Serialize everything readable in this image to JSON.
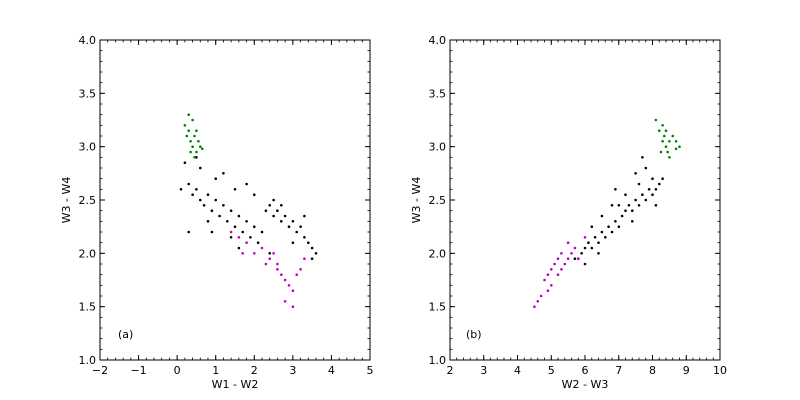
{
  "chart_data": [
    {
      "type": "scatter",
      "panel_label": "(a)",
      "xlabel": "W1 - W2",
      "ylabel": "W3 - W4",
      "xlim": [
        -2,
        5
      ],
      "ylim": [
        1.0,
        4.0
      ],
      "xticks": [
        "−2",
        "−1",
        "0",
        "1",
        "2",
        "3",
        "4",
        "5"
      ],
      "yticks": [
        "1.0",
        "1.5",
        "2.0",
        "2.5",
        "3.0",
        "3.5",
        "4.0"
      ],
      "grid": false,
      "series": [
        {
          "color": "#000000",
          "points": [
            [
              0.1,
              2.6
            ],
            [
              0.3,
              2.65
            ],
            [
              0.4,
              2.55
            ],
            [
              0.5,
              2.6
            ],
            [
              0.6,
              2.5
            ],
            [
              0.7,
              2.45
            ],
            [
              0.8,
              2.55
            ],
            [
              0.9,
              2.4
            ],
            [
              1.0,
              2.5
            ],
            [
              1.1,
              2.35
            ],
            [
              1.2,
              2.45
            ],
            [
              1.3,
              2.3
            ],
            [
              1.4,
              2.4
            ],
            [
              1.5,
              2.25
            ],
            [
              1.6,
              2.35
            ],
            [
              1.7,
              2.2
            ],
            [
              1.8,
              2.3
            ],
            [
              1.9,
              2.15
            ],
            [
              2.0,
              2.25
            ],
            [
              2.1,
              2.1
            ],
            [
              2.2,
              2.2
            ],
            [
              2.3,
              2.4
            ],
            [
              2.4,
              2.45
            ],
            [
              2.5,
              2.35
            ],
            [
              2.6,
              2.4
            ],
            [
              2.7,
              2.3
            ],
            [
              2.8,
              2.35
            ],
            [
              2.9,
              2.25
            ],
            [
              3.0,
              2.3
            ],
            [
              3.1,
              2.2
            ],
            [
              3.2,
              2.25
            ],
            [
              3.3,
              2.15
            ],
            [
              3.4,
              2.1
            ],
            [
              3.5,
              2.05
            ],
            [
              3.6,
              2.0
            ],
            [
              1.0,
              2.7
            ],
            [
              1.5,
              2.6
            ],
            [
              2.0,
              2.55
            ],
            [
              2.5,
              2.5
            ],
            [
              0.6,
              2.8
            ],
            [
              1.2,
              2.75
            ],
            [
              1.8,
              2.65
            ],
            [
              0.3,
              2.2
            ],
            [
              0.8,
              2.3
            ],
            [
              1.4,
              2.15
            ],
            [
              2.4,
              2.0
            ],
            [
              3.0,
              2.1
            ],
            [
              3.5,
              1.95
            ],
            [
              0.2,
              2.85
            ],
            [
              0.5,
              2.9
            ],
            [
              1.6,
              2.05
            ],
            [
              2.7,
              2.45
            ],
            [
              3.3,
              2.35
            ],
            [
              0.9,
              2.2
            ]
          ]
        },
        {
          "color": "#008000",
          "points": [
            [
              0.2,
              3.2
            ],
            [
              0.25,
              3.1
            ],
            [
              0.3,
              3.15
            ],
            [
              0.35,
              3.05
            ],
            [
              0.4,
              3.0
            ],
            [
              0.45,
              3.1
            ],
            [
              0.5,
              2.95
            ],
            [
              0.55,
              3.05
            ],
            [
              0.6,
              3.0
            ],
            [
              0.4,
              3.25
            ],
            [
              0.3,
              3.3
            ],
            [
              0.5,
              3.15
            ],
            [
              0.35,
              2.95
            ],
            [
              0.45,
              2.9
            ],
            [
              0.65,
              2.98
            ]
          ]
        },
        {
          "color": "#c000c0",
          "points": [
            [
              1.4,
              2.2
            ],
            [
              1.6,
              2.15
            ],
            [
              1.8,
              2.1
            ],
            [
              2.0,
              2.0
            ],
            [
              2.2,
              2.05
            ],
            [
              2.4,
              1.95
            ],
            [
              2.5,
              2.0
            ],
            [
              2.6,
              1.85
            ],
            [
              2.7,
              1.8
            ],
            [
              2.8,
              1.75
            ],
            [
              2.9,
              1.7
            ],
            [
              3.0,
              1.65
            ],
            [
              3.1,
              1.8
            ],
            [
              3.2,
              1.85
            ],
            [
              2.8,
              1.55
            ],
            [
              3.0,
              1.5
            ],
            [
              3.3,
              1.95
            ],
            [
              2.6,
              1.9
            ],
            [
              1.7,
              2.0
            ],
            [
              2.3,
              1.9
            ]
          ]
        }
      ]
    },
    {
      "type": "scatter",
      "panel_label": "(b)",
      "xlabel": "W2 - W3",
      "ylabel": "W3 - W4",
      "xlim": [
        2,
        10
      ],
      "ylim": [
        1.0,
        4.0
      ],
      "xticks": [
        "2",
        "3",
        "4",
        "5",
        "6",
        "7",
        "8",
        "9",
        "10"
      ],
      "yticks": [
        "1.0",
        "1.5",
        "2.0",
        "2.5",
        "3.0",
        "3.5",
        "4.0"
      ],
      "grid": false,
      "series": [
        {
          "color": "#000000",
          "points": [
            [
              5.7,
              1.95
            ],
            [
              5.9,
              2.0
            ],
            [
              6.0,
              2.05
            ],
            [
              6.1,
              2.1
            ],
            [
              6.2,
              2.05
            ],
            [
              6.3,
              2.15
            ],
            [
              6.4,
              2.1
            ],
            [
              6.5,
              2.2
            ],
            [
              6.6,
              2.15
            ],
            [
              6.7,
              2.25
            ],
            [
              6.8,
              2.2
            ],
            [
              6.9,
              2.3
            ],
            [
              7.0,
              2.25
            ],
            [
              7.1,
              2.35
            ],
            [
              7.2,
              2.4
            ],
            [
              7.3,
              2.45
            ],
            [
              7.4,
              2.4
            ],
            [
              7.5,
              2.5
            ],
            [
              7.6,
              2.45
            ],
            [
              7.7,
              2.55
            ],
            [
              7.8,
              2.5
            ],
            [
              7.9,
              2.6
            ],
            [
              8.0,
              2.55
            ],
            [
              8.1,
              2.6
            ],
            [
              8.2,
              2.65
            ],
            [
              8.3,
              2.7
            ],
            [
              7.5,
              2.75
            ],
            [
              7.8,
              2.8
            ],
            [
              6.8,
              2.45
            ],
            [
              7.2,
              2.55
            ],
            [
              6.2,
              2.25
            ],
            [
              6.5,
              2.35
            ],
            [
              7.6,
              2.65
            ],
            [
              8.0,
              2.7
            ],
            [
              7.0,
              2.45
            ],
            [
              6.0,
              1.9
            ],
            [
              7.4,
              2.3
            ],
            [
              8.1,
              2.45
            ],
            [
              7.7,
              2.9
            ],
            [
              6.9,
              2.6
            ],
            [
              5.8,
              1.95
            ],
            [
              6.4,
              2.0
            ]
          ]
        },
        {
          "color": "#008000",
          "points": [
            [
              8.2,
              3.15
            ],
            [
              8.3,
              3.05
            ],
            [
              8.35,
              3.1
            ],
            [
              8.4,
              3.0
            ],
            [
              8.45,
              2.95
            ],
            [
              8.5,
              3.05
            ],
            [
              8.3,
              3.2
            ],
            [
              8.1,
              3.25
            ],
            [
              8.7,
              3.05
            ],
            [
              8.8,
              3.0
            ],
            [
              8.6,
              3.1
            ],
            [
              8.4,
              3.15
            ],
            [
              8.25,
              2.95
            ],
            [
              8.5,
              2.9
            ],
            [
              8.7,
              2.98
            ]
          ]
        },
        {
          "color": "#c000c0",
          "points": [
            [
              4.8,
              1.75
            ],
            [
              4.9,
              1.8
            ],
            [
              5.0,
              1.85
            ],
            [
              5.1,
              1.9
            ],
            [
              5.2,
              1.95
            ],
            [
              5.3,
              2.0
            ],
            [
              5.4,
              1.9
            ],
            [
              5.5,
              1.95
            ],
            [
              5.6,
              2.0
            ],
            [
              5.7,
              2.05
            ],
            [
              4.7,
              1.6
            ],
            [
              4.6,
              1.55
            ],
            [
              4.5,
              1.5
            ],
            [
              5.0,
              1.7
            ],
            [
              5.2,
              1.8
            ],
            [
              5.5,
              2.1
            ],
            [
              5.8,
              1.95
            ],
            [
              6.0,
              2.15
            ],
            [
              4.9,
              1.65
            ],
            [
              5.3,
              1.85
            ]
          ]
        }
      ]
    }
  ]
}
